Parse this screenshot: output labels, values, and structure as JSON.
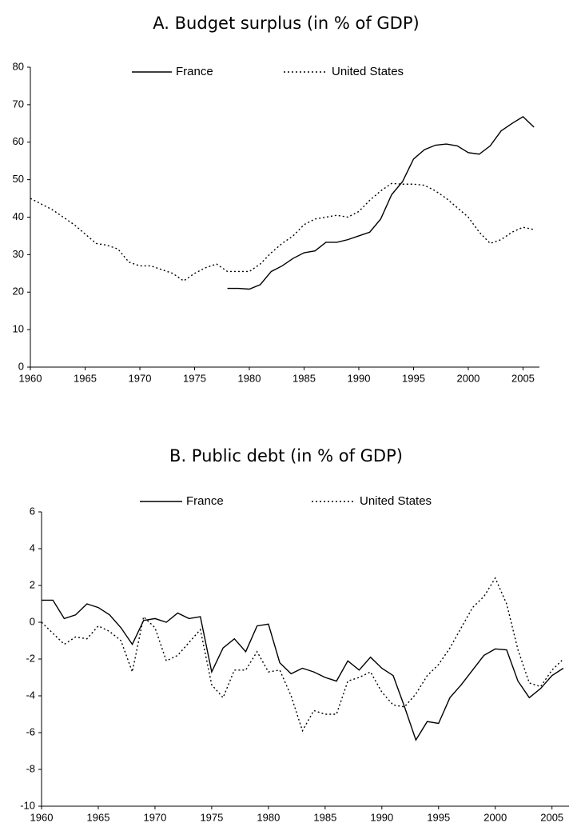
{
  "chart_data": [
    {
      "type": "line",
      "title": "A. Budget surplus (in % of GDP)",
      "x": [
        1960,
        1961,
        1962,
        1963,
        1964,
        1965,
        1966,
        1967,
        1968,
        1969,
        1970,
        1971,
        1972,
        1973,
        1974,
        1975,
        1976,
        1977,
        1978,
        1979,
        1980,
        1981,
        1982,
        1983,
        1984,
        1985,
        1986,
        1987,
        1988,
        1989,
        1990,
        1991,
        1992,
        1993,
        1994,
        1995,
        1996,
        1997,
        1998,
        1999,
        2000,
        2001,
        2002,
        2003,
        2004,
        2005,
        2006
      ],
      "xlim": [
        1960,
        2006.5
      ],
      "xticks": [
        1960,
        1965,
        1970,
        1975,
        1980,
        1985,
        1990,
        1995,
        2000,
        2005
      ],
      "ylim": [
        0,
        80
      ],
      "yticks": [
        0,
        10,
        20,
        30,
        40,
        50,
        60,
        70,
        80
      ],
      "legend": "top",
      "series": [
        {
          "name": "France",
          "color": "#000000",
          "dash": "solid",
          "values": [
            null,
            null,
            null,
            null,
            null,
            null,
            null,
            null,
            null,
            null,
            null,
            null,
            null,
            null,
            null,
            null,
            null,
            null,
            21,
            21,
            20.8,
            22,
            25.5,
            27,
            29,
            30.5,
            31,
            33.3,
            33.3,
            34,
            35,
            36,
            39.5,
            46,
            49.5,
            55.5,
            58,
            59.2,
            59.5,
            59,
            57.2,
            56.8,
            59,
            63,
            65,
            66.8,
            64
          ]
        },
        {
          "name": "United States",
          "color": "#000000",
          "dash": "dotted",
          "values": [
            45,
            43.5,
            42,
            40,
            38,
            35.5,
            33,
            32.5,
            31.5,
            28,
            27,
            27,
            26,
            25,
            23,
            25,
            26.5,
            27.5,
            25.5,
            25.5,
            25.5,
            27.5,
            30.5,
            33,
            35,
            38,
            39.5,
            40,
            40.5,
            40,
            41.5,
            44.5,
            47,
            49,
            48.8,
            48.8,
            48.5,
            47,
            45,
            42.5,
            40,
            36,
            33,
            34,
            36,
            37.3,
            36.7
          ]
        }
      ]
    },
    {
      "type": "line",
      "title": "B. Public debt (in % of GDP)",
      "x": [
        1960,
        1961,
        1962,
        1963,
        1964,
        1965,
        1966,
        1967,
        1968,
        1969,
        1970,
        1971,
        1972,
        1973,
        1974,
        1975,
        1976,
        1977,
        1978,
        1979,
        1980,
        1981,
        1982,
        1983,
        1984,
        1985,
        1986,
        1987,
        1988,
        1989,
        1990,
        1991,
        1992,
        1993,
        1994,
        1995,
        1996,
        1997,
        1998,
        1999,
        2000,
        2001,
        2002,
        2003,
        2004,
        2005,
        2006
      ],
      "xlim": [
        1960,
        2006.5
      ],
      "xticks": [
        1960,
        1965,
        1970,
        1975,
        1980,
        1985,
        1990,
        1995,
        2000,
        2005
      ],
      "ylim": [
        -10,
        6
      ],
      "yticks": [
        -10,
        -8,
        -6,
        -4,
        -2,
        0,
        2,
        4,
        6
      ],
      "legend": "top",
      "series": [
        {
          "name": "France",
          "color": "#000000",
          "dash": "solid",
          "values": [
            1.2,
            1.2,
            0.2,
            0.4,
            1.0,
            0.8,
            0.4,
            -0.3,
            -1.2,
            0.1,
            0.2,
            0,
            0.5,
            0.2,
            0.3,
            -2.7,
            -1.4,
            -0.9,
            -1.6,
            -0.2,
            -0.1,
            -2.2,
            -2.8,
            -2.5,
            -2.7,
            -3.0,
            -3.2,
            -2.1,
            -2.6,
            -1.9,
            -2.5,
            -2.9,
            -4.6,
            -6.4,
            -5.4,
            -5.5,
            -4.1,
            -3.4,
            -2.6,
            -1.8,
            -1.45,
            -1.5,
            -3.2,
            -4.1,
            -3.6,
            -2.9,
            -2.5
          ]
        },
        {
          "name": "United States",
          "color": "#000000",
          "dash": "dotted",
          "values": [
            0.0,
            -0.6,
            -1.2,
            -0.8,
            -0.9,
            -0.2,
            -0.5,
            -1.0,
            -2.7,
            0.3,
            -0.3,
            -2.1,
            -1.8,
            -1.1,
            -0.4,
            -3.4,
            -4.1,
            -2.6,
            -2.6,
            -1.6,
            -2.7,
            -2.6,
            -4.0,
            -5.9,
            -4.8,
            -5.0,
            -5.0,
            -3.2,
            -3.0,
            -2.7,
            -3.8,
            -4.5,
            -4.6,
            -3.9,
            -2.9,
            -2.3,
            -1.4,
            -0.3,
            0.8,
            1.4,
            2.4,
            1.0,
            -1.5,
            -3.3,
            -3.5,
            -2.6,
            -2.0
          ]
        }
      ]
    }
  ]
}
